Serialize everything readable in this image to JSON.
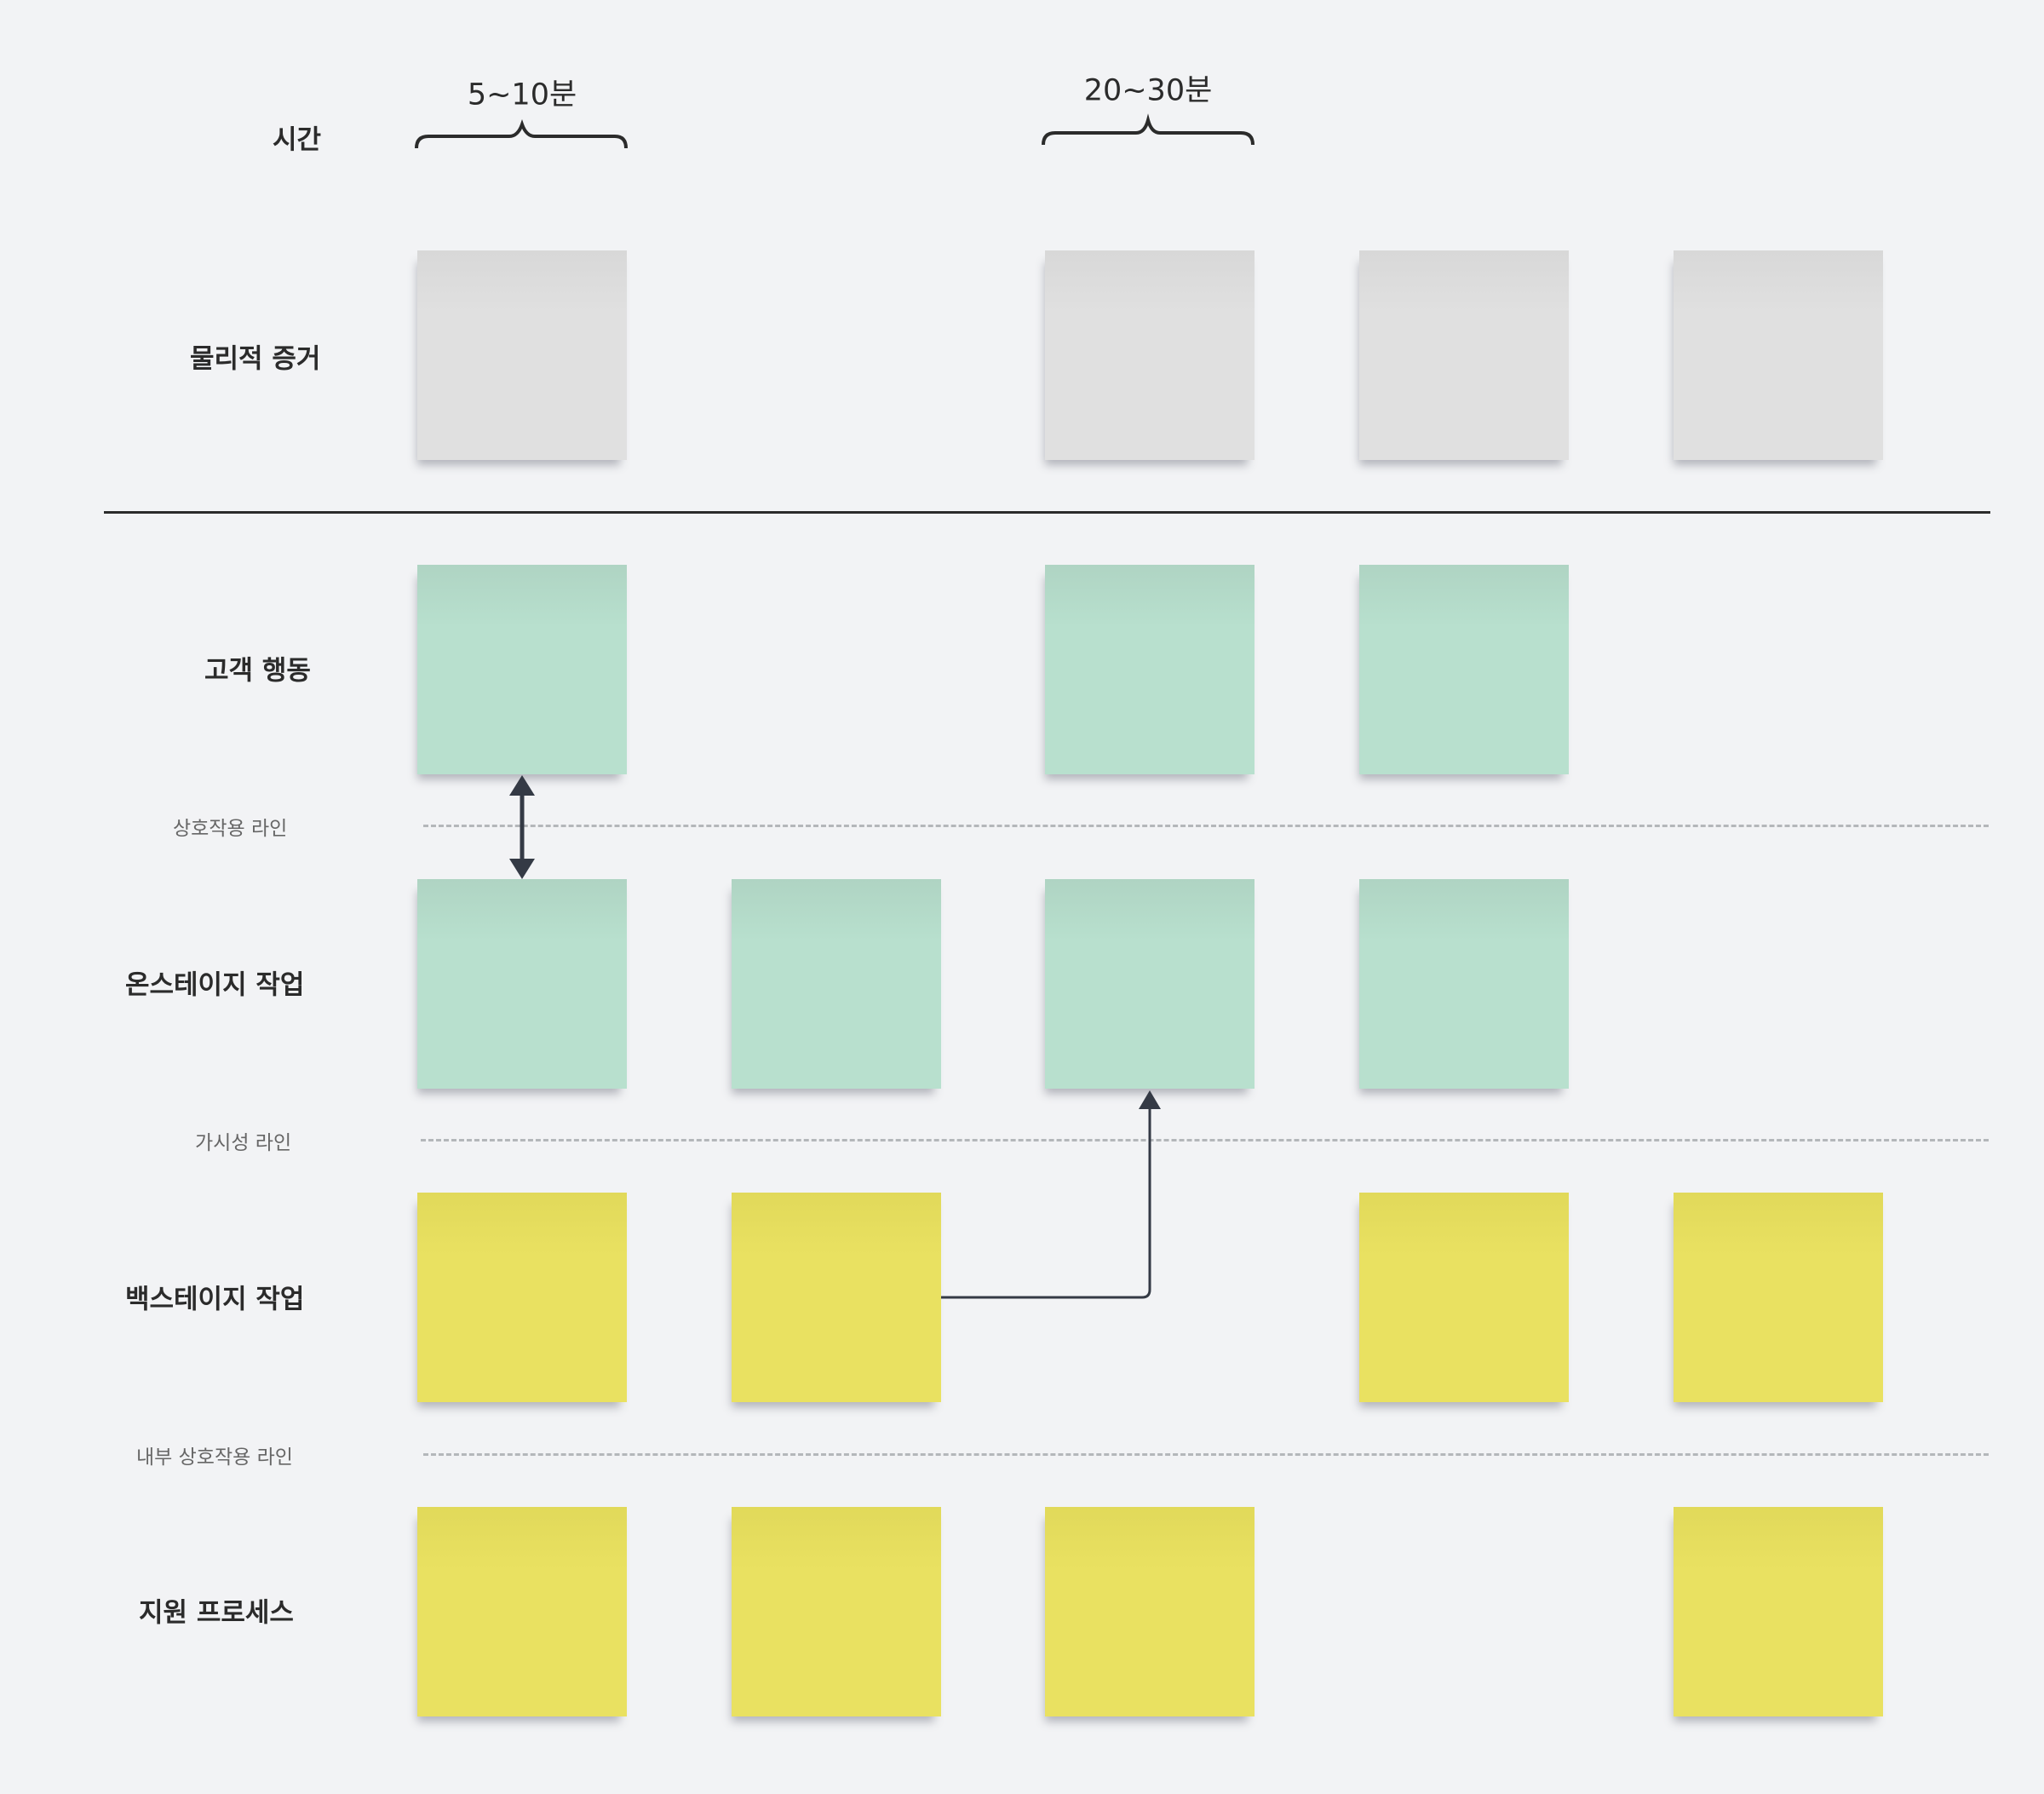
{
  "time_row": {
    "label": "시간",
    "spans": [
      {
        "label": "5~10분",
        "from_column": 1,
        "to_column": 1
      },
      {
        "label": "20~30분",
        "from_column": 3,
        "to_column": 3
      }
    ]
  },
  "lanes": [
    {
      "label": "물리적 증거",
      "color": "#e0e0e0",
      "top_color": "#d8d8d8",
      "notes": [
        true,
        false,
        true,
        true,
        true
      ]
    },
    {
      "label": "고객 행동",
      "color": "#b8e0ce",
      "top_color": "#afd4c3",
      "notes": [
        true,
        false,
        true,
        true,
        false
      ]
    },
    {
      "label": "온스테이지 작업",
      "color": "#b8e0ce",
      "top_color": "#afd4c3",
      "notes": [
        true,
        true,
        true,
        true,
        false
      ]
    },
    {
      "label": "백스테이지 작업",
      "color": "#e9e161",
      "top_color": "#e1d95a",
      "notes": [
        true,
        true,
        false,
        true,
        true
      ]
    },
    {
      "label": "지원 프로세스",
      "color": "#e9e161",
      "top_color": "#e1d95a",
      "notes": [
        true,
        true,
        true,
        false,
        true
      ]
    }
  ],
  "lines": {
    "interaction": "상호작용 라인",
    "visibility": "가시성 라인",
    "internal_interaction": "내부 상호작용 라인"
  },
  "connectors": [
    {
      "type": "double-arrow",
      "from": "고객 행동 col 1",
      "to": "온스테이지 작업 col 1"
    },
    {
      "type": "elbow-arrow",
      "from": "백스테이지 작업 col 2",
      "to": "온스테이지 작업 col 3"
    }
  ],
  "colors": {
    "background": "#f2f3f5",
    "ink": "#343a45",
    "dash": "#b4b7ba"
  }
}
